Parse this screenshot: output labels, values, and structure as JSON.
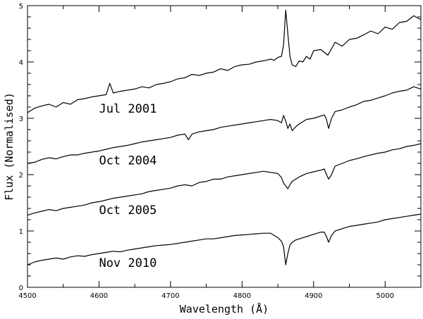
{
  "chart_data": {
    "type": "line",
    "title": "",
    "xlabel": "Wavelength (Å)",
    "ylabel": "Flux (Normalised)",
    "xlim": [
      4500,
      5050
    ],
    "ylim": [
      0,
      5
    ],
    "x_ticks": [
      4500,
      4600,
      4700,
      4800,
      4900,
      5000
    ],
    "y_ticks": [
      0,
      1,
      2,
      3,
      4,
      5
    ],
    "x_minor_step": 50,
    "y_minor_step": 0.2,
    "grid": false,
    "series": [
      {
        "name": "Jul 2001",
        "label_x": 4600,
        "label_y": 3.1,
        "x": [
          4500,
          4510,
          4520,
          4530,
          4540,
          4550,
          4560,
          4570,
          4580,
          4590,
          4600,
          4610,
          4615,
          4620,
          4630,
          4640,
          4650,
          4660,
          4670,
          4680,
          4690,
          4700,
          4710,
          4720,
          4730,
          4740,
          4750,
          4760,
          4770,
          4780,
          4790,
          4800,
          4810,
          4820,
          4830,
          4840,
          4845,
          4850,
          4855,
          4858,
          4861,
          4864,
          4867,
          4870,
          4875,
          4880,
          4885,
          4890,
          4895,
          4900,
          4910,
          4920,
          4930,
          4940,
          4950,
          4960,
          4970,
          4980,
          4990,
          5000,
          5010,
          5020,
          5030,
          5040,
          5050
        ],
        "y": [
          3.1,
          3.18,
          3.22,
          3.25,
          3.2,
          3.28,
          3.25,
          3.33,
          3.35,
          3.38,
          3.4,
          3.42,
          3.62,
          3.45,
          3.48,
          3.5,
          3.52,
          3.56,
          3.54,
          3.6,
          3.62,
          3.65,
          3.7,
          3.72,
          3.78,
          3.76,
          3.8,
          3.82,
          3.88,
          3.85,
          3.92,
          3.95,
          3.96,
          4.0,
          4.02,
          4.05,
          4.03,
          4.08,
          4.1,
          4.3,
          4.92,
          4.5,
          4.1,
          3.95,
          3.92,
          4.02,
          4.0,
          4.1,
          4.05,
          4.2,
          4.22,
          4.12,
          4.35,
          4.28,
          4.4,
          4.42,
          4.48,
          4.55,
          4.5,
          4.62,
          4.58,
          4.7,
          4.72,
          4.82,
          4.75
        ]
      },
      {
        "name": "Oct 2004",
        "label_x": 4600,
        "label_y": 2.18,
        "x": [
          4500,
          4510,
          4520,
          4530,
          4540,
          4550,
          4560,
          4570,
          4580,
          4590,
          4600,
          4610,
          4620,
          4630,
          4640,
          4650,
          4660,
          4670,
          4680,
          4690,
          4700,
          4710,
          4720,
          4725,
          4730,
          4740,
          4750,
          4760,
          4770,
          4780,
          4790,
          4800,
          4810,
          4820,
          4830,
          4840,
          4850,
          4855,
          4858,
          4861,
          4864,
          4867,
          4870,
          4875,
          4880,
          4890,
          4900,
          4910,
          4915,
          4918,
          4921,
          4925,
          4930,
          4940,
          4950,
          4960,
          4970,
          4980,
          4990,
          5000,
          5010,
          5020,
          5030,
          5040,
          5050
        ],
        "y": [
          2.2,
          2.22,
          2.27,
          2.3,
          2.28,
          2.32,
          2.35,
          2.35,
          2.38,
          2.4,
          2.42,
          2.45,
          2.48,
          2.5,
          2.52,
          2.55,
          2.58,
          2.6,
          2.62,
          2.64,
          2.66,
          2.7,
          2.72,
          2.62,
          2.72,
          2.76,
          2.78,
          2.8,
          2.84,
          2.86,
          2.88,
          2.9,
          2.92,
          2.94,
          2.96,
          2.98,
          2.96,
          2.92,
          3.05,
          2.95,
          2.82,
          2.9,
          2.78,
          2.85,
          2.9,
          2.98,
          3.0,
          3.04,
          3.06,
          2.98,
          2.82,
          3.0,
          3.12,
          3.15,
          3.2,
          3.24,
          3.3,
          3.32,
          3.36,
          3.4,
          3.45,
          3.48,
          3.5,
          3.56,
          3.52
        ]
      },
      {
        "name": "Oct 2005",
        "label_x": 4600,
        "label_y": 1.3,
        "x": [
          4500,
          4510,
          4520,
          4530,
          4540,
          4550,
          4560,
          4570,
          4580,
          4590,
          4600,
          4610,
          4620,
          4630,
          4640,
          4650,
          4660,
          4670,
          4680,
          4690,
          4700,
          4710,
          4720,
          4730,
          4740,
          4750,
          4760,
          4770,
          4780,
          4790,
          4800,
          4810,
          4820,
          4830,
          4840,
          4850,
          4855,
          4858,
          4861,
          4864,
          4867,
          4870,
          4875,
          4880,
          4890,
          4900,
          4910,
          4915,
          4918,
          4921,
          4925,
          4930,
          4940,
          4950,
          4960,
          4970,
          4980,
          4990,
          5000,
          5010,
          5020,
          5030,
          5040,
          5050
        ],
        "y": [
          1.28,
          1.32,
          1.35,
          1.38,
          1.36,
          1.4,
          1.42,
          1.44,
          1.46,
          1.5,
          1.52,
          1.55,
          1.58,
          1.6,
          1.62,
          1.64,
          1.66,
          1.7,
          1.72,
          1.74,
          1.76,
          1.8,
          1.82,
          1.8,
          1.86,
          1.88,
          1.92,
          1.92,
          1.96,
          1.98,
          2.0,
          2.02,
          2.04,
          2.06,
          2.04,
          2.02,
          1.95,
          1.85,
          1.8,
          1.75,
          1.82,
          1.88,
          1.92,
          1.96,
          2.02,
          2.05,
          2.08,
          2.1,
          2.0,
          1.92,
          2.0,
          2.15,
          2.2,
          2.25,
          2.28,
          2.32,
          2.35,
          2.38,
          2.4,
          2.44,
          2.46,
          2.5,
          2.52,
          2.55
        ]
      },
      {
        "name": "Nov 2010",
        "label_x": 4600,
        "label_y": 0.36,
        "x": [
          4500,
          4510,
          4520,
          4530,
          4540,
          4550,
          4560,
          4570,
          4580,
          4590,
          4600,
          4610,
          4620,
          4630,
          4640,
          4650,
          4660,
          4670,
          4680,
          4690,
          4700,
          4710,
          4720,
          4730,
          4740,
          4750,
          4760,
          4770,
          4780,
          4790,
          4800,
          4810,
          4820,
          4830,
          4840,
          4845,
          4850,
          4855,
          4858,
          4861,
          4864,
          4867,
          4870,
          4875,
          4880,
          4890,
          4900,
          4910,
          4915,
          4918,
          4921,
          4925,
          4930,
          4940,
          4950,
          4960,
          4970,
          4980,
          4990,
          5000,
          5010,
          5020,
          5030,
          5040,
          5050
        ],
        "y": [
          0.4,
          0.45,
          0.48,
          0.5,
          0.52,
          0.5,
          0.54,
          0.56,
          0.55,
          0.58,
          0.6,
          0.62,
          0.64,
          0.63,
          0.66,
          0.68,
          0.7,
          0.72,
          0.74,
          0.75,
          0.76,
          0.78,
          0.8,
          0.82,
          0.84,
          0.86,
          0.86,
          0.88,
          0.9,
          0.92,
          0.93,
          0.94,
          0.95,
          0.96,
          0.96,
          0.92,
          0.88,
          0.82,
          0.72,
          0.4,
          0.6,
          0.75,
          0.8,
          0.84,
          0.86,
          0.9,
          0.94,
          0.98,
          0.98,
          0.9,
          0.8,
          0.92,
          1.0,
          1.04,
          1.08,
          1.1,
          1.12,
          1.14,
          1.16,
          1.2,
          1.22,
          1.24,
          1.26,
          1.28,
          1.3
        ]
      }
    ]
  }
}
